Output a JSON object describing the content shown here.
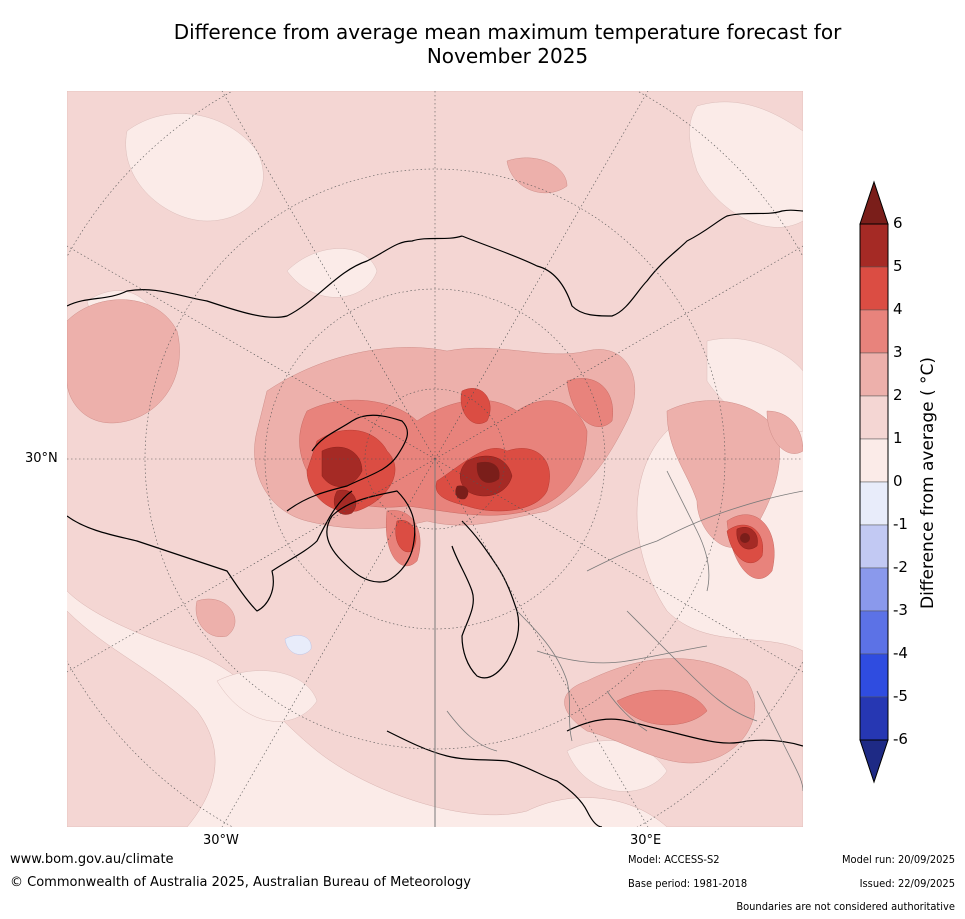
{
  "title": {
    "line1": "Difference from average mean maximum temperature forecast for",
    "line2": "November 2025"
  },
  "map": {
    "projection": "north-polar-stereographic",
    "lat_labels": [
      "30°N"
    ],
    "lon_labels": [
      "30°W",
      "30°E"
    ]
  },
  "legend": {
    "label": "Difference from average ( °C)",
    "ticks": [
      "6",
      "5",
      "4",
      "3",
      "2",
      "1",
      "0",
      "-1",
      "-2",
      "-3",
      "-4",
      "-5",
      "-6"
    ],
    "levels": [
      {
        "range": "5 to 6",
        "color": "#a52a25"
      },
      {
        "range": "4 to 5",
        "color": "#db4d43"
      },
      {
        "range": "3 to 4",
        "color": "#e8837c"
      },
      {
        "range": "2 to 3",
        "color": "#edb0ab"
      },
      {
        "range": "1 to 2",
        "color": "#f4d6d3"
      },
      {
        "range": "0 to 1",
        "color": "#fbebe8"
      },
      {
        "range": "-1 to 0",
        "color": "#e8ecfa"
      },
      {
        "range": "-2 to -1",
        "color": "#c2c9f3"
      },
      {
        "range": "-3 to -2",
        "color": "#8a99ec"
      },
      {
        "range": "-4 to -3",
        "color": "#5c72e6"
      },
      {
        "range": "-5 to -4",
        "color": "#2f4ce0"
      },
      {
        "range": "-6 to -5",
        "color": "#2637b3"
      }
    ],
    "over_color": "#7a1e1a",
    "under_color": "#1e2a85"
  },
  "footer": {
    "website": "www.bom.gov.au/climate",
    "copyright": "© Commonwealth of Australia 2025, Australian Bureau of Meteorology",
    "model": "Model: ACCESS-S2",
    "base_period": "Base period: 1981-2018",
    "model_run": "Model run: 20/09/2025",
    "issued": "Issued: 22/09/2025",
    "disclaimer": "Boundaries are not considered authoritative"
  }
}
